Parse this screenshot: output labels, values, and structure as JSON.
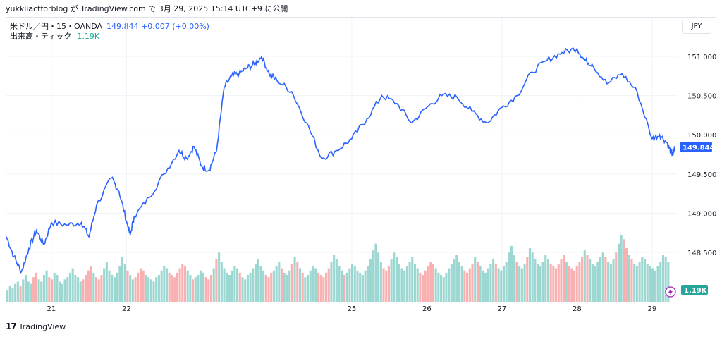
{
  "header": {
    "caption": "yukkiiactforblog が TradingView.com で 3月 29, 2025 15:14 UTC+9 に公開"
  },
  "legend": {
    "symbol": "米ドル／円・15・OANDA",
    "price_text": "149.844 +0.007 (+0.00%)",
    "volume_label": "出来高・ティック",
    "volume_value": "1.19K"
  },
  "currency_button": "JPY",
  "brand": {
    "logo": "17",
    "name": "TradingView"
  },
  "colors": {
    "line": "#2962ff",
    "vol_up": "#26a69a",
    "vol_down": "#ef5350",
    "grid": "#f0f3fa",
    "tag_vol": "#26a69a"
  },
  "chart_data": {
    "type": "line",
    "title": "米ドル／円・15・OANDA",
    "xlabel": "",
    "ylabel": "",
    "x_ticks": [
      "21",
      "22",
      "25",
      "26",
      "27",
      "28",
      "29"
    ],
    "y_ticks": [
      "151.000",
      "150.500",
      "150.000",
      "149.500",
      "149.000",
      "148.500"
    ],
    "ylim": [
      148.0,
      151.3
    ],
    "x_range": [
      20.4,
      29.33
    ],
    "grid": true,
    "last_price": 149.844,
    "last_price_label": "149.844",
    "volume_tag_label": "1.19K",
    "series": [
      {
        "name": "米ドル／円",
        "points": [
          [
            20.4,
            148.7
          ],
          [
            20.5,
            148.45
          ],
          [
            20.6,
            148.25
          ],
          [
            20.7,
            148.55
          ],
          [
            20.8,
            148.78
          ],
          [
            20.9,
            148.6
          ],
          [
            21.0,
            148.88
          ],
          [
            21.2,
            148.85
          ],
          [
            21.4,
            148.88
          ],
          [
            21.5,
            148.7
          ],
          [
            21.6,
            149.1
          ],
          [
            21.8,
            149.45
          ],
          [
            21.9,
            149.28
          ],
          [
            22.0,
            148.9
          ],
          [
            22.05,
            148.72
          ],
          [
            22.1,
            148.95
          ],
          [
            22.3,
            149.2
          ],
          [
            22.5,
            149.5
          ],
          [
            22.7,
            149.8
          ],
          [
            22.8,
            149.7
          ],
          [
            22.9,
            149.85
          ],
          [
            23.0,
            149.6
          ],
          [
            23.1,
            149.55
          ],
          [
            23.2,
            149.8
          ],
          [
            23.3,
            150.6
          ],
          [
            23.4,
            150.75
          ],
          [
            23.5,
            150.78
          ],
          [
            23.6,
            150.85
          ],
          [
            23.7,
            150.9
          ],
          [
            23.8,
            151.0
          ],
          [
            23.9,
            150.78
          ],
          [
            24.0,
            150.7
          ],
          [
            24.2,
            150.55
          ],
          [
            24.4,
            150.15
          ],
          [
            24.6,
            149.7
          ],
          [
            24.8,
            149.8
          ],
          [
            25.0,
            149.95
          ],
          [
            25.2,
            150.2
          ],
          [
            25.4,
            150.5
          ],
          [
            25.6,
            150.4
          ],
          [
            25.8,
            150.15
          ],
          [
            26.0,
            150.35
          ],
          [
            26.2,
            150.5
          ],
          [
            26.4,
            150.48
          ],
          [
            26.6,
            150.3
          ],
          [
            26.8,
            150.15
          ],
          [
            27.0,
            150.35
          ],
          [
            27.2,
            150.5
          ],
          [
            27.4,
            150.8
          ],
          [
            27.6,
            150.95
          ],
          [
            27.8,
            151.05
          ],
          [
            28.0,
            151.1
          ],
          [
            28.1,
            150.95
          ],
          [
            28.2,
            150.9
          ],
          [
            28.4,
            150.65
          ],
          [
            28.6,
            150.78
          ],
          [
            28.8,
            150.55
          ],
          [
            29.0,
            149.95
          ],
          [
            29.1,
            150.0
          ],
          [
            29.2,
            149.9
          ],
          [
            29.25,
            149.78
          ],
          [
            29.28,
            149.74
          ],
          [
            29.3,
            149.844
          ]
        ]
      }
    ],
    "volume_series": [
      5,
      7,
      6,
      8,
      9,
      7,
      10,
      12,
      9,
      8,
      11,
      13,
      10,
      9,
      12,
      14,
      11,
      10,
      13,
      12,
      9,
      8,
      10,
      11,
      13,
      15,
      12,
      11,
      9,
      10,
      12,
      14,
      16,
      13,
      11,
      10,
      12,
      15,
      18,
      14,
      12,
      11,
      13,
      16,
      20,
      17,
      14,
      12,
      10,
      11,
      13,
      15,
      14,
      12,
      11,
      10,
      9,
      11,
      12,
      14,
      16,
      15,
      13,
      12,
      11,
      13,
      15,
      17,
      16,
      14,
      12,
      10,
      11,
      12,
      14,
      13,
      11,
      10,
      12,
      15,
      19,
      22,
      18,
      15,
      13,
      12,
      14,
      16,
      15,
      13,
      11,
      10,
      12,
      13,
      15,
      17,
      19,
      16,
      14,
      12,
      11,
      13,
      14,
      16,
      18,
      15,
      13,
      12,
      14,
      17,
      20,
      18,
      15,
      13,
      11,
      12,
      14,
      16,
      15,
      13,
      12,
      11,
      13,
      15,
      18,
      21,
      19,
      16,
      14,
      12,
      13,
      15,
      17,
      16,
      14,
      13,
      12,
      14,
      16,
      19,
      23,
      26,
      22,
      18,
      15,
      14,
      16,
      19,
      22,
      20,
      17,
      15,
      14,
      16,
      18,
      20,
      17,
      15,
      13,
      12,
      14,
      16,
      18,
      17,
      15,
      13,
      12,
      11,
      13,
      15,
      17,
      19,
      21,
      18,
      16,
      14,
      13,
      15,
      17,
      20,
      18,
      16,
      14,
      13,
      15,
      17,
      19,
      17,
      15,
      14,
      16,
      18,
      22,
      25,
      21,
      18,
      16,
      15,
      17,
      20,
      24,
      22,
      19,
      17,
      16,
      18,
      21,
      19,
      17,
      16,
      15,
      17,
      19,
      21,
      18,
      16,
      15,
      14,
      16,
      18,
      20,
      23,
      21,
      19,
      17,
      16,
      18,
      20,
      22,
      20,
      18,
      17,
      19,
      22,
      26,
      30,
      28,
      24,
      21,
      19,
      17,
      16,
      18,
      20,
      19,
      17,
      16,
      15,
      14,
      16,
      18,
      21,
      20,
      18
    ]
  }
}
